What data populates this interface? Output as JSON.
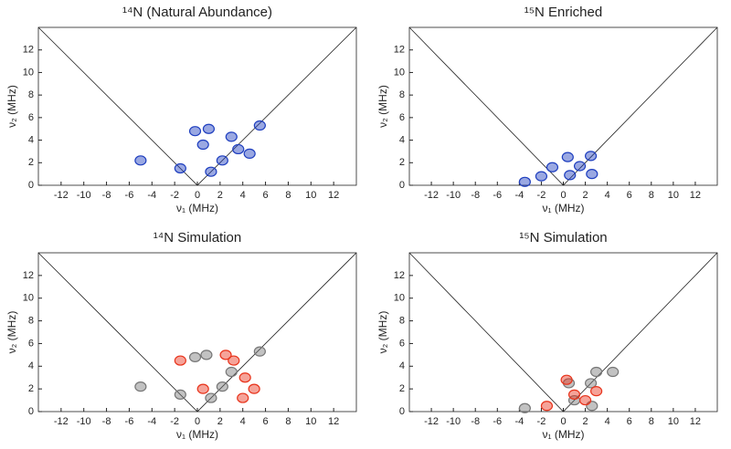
{
  "chart_data": [
    {
      "type": "contour",
      "title": "¹⁴N (Natural Abundance)",
      "xlabel": "ν₁ (MHz)",
      "ylabel": "ν₂ (MHz)",
      "xlim": [
        -14,
        14
      ],
      "ylim": [
        0,
        14
      ],
      "xticks": [
        -12,
        -10,
        -8,
        -6,
        -4,
        -2,
        0,
        2,
        4,
        6,
        8,
        10,
        12
      ],
      "yticks": [
        0,
        2,
        4,
        6,
        8,
        10,
        12
      ],
      "series": [
        {
          "color": "#1f3fbf",
          "x": [
            -5,
            -1.5,
            1.2,
            2.2,
            3,
            3.6,
            4.6,
            1,
            -0.2,
            5.5,
            0.5
          ],
          "y": [
            2.2,
            1.5,
            1.2,
            2.2,
            4.3,
            3.2,
            2.8,
            5,
            4.8,
            5.3,
            3.6
          ]
        }
      ]
    },
    {
      "type": "contour",
      "title": "¹⁵N Enriched",
      "xlabel": "ν₁ (MHz)",
      "ylabel": "ν₂ (MHz)",
      "xlim": [
        -14,
        14
      ],
      "ylim": [
        0,
        14
      ],
      "xticks": [
        -12,
        -10,
        -8,
        -6,
        -4,
        -2,
        0,
        2,
        4,
        6,
        8,
        10,
        12
      ],
      "yticks": [
        0,
        2,
        4,
        6,
        8,
        10,
        12
      ],
      "series": [
        {
          "color": "#1f3fbf",
          "x": [
            0.4,
            2.5,
            0.6,
            2.6,
            -2,
            -3.5,
            -1,
            1.5
          ],
          "y": [
            2.5,
            2.6,
            0.9,
            1.0,
            0.8,
            0.3,
            1.6,
            1.7
          ]
        }
      ]
    },
    {
      "type": "contour",
      "title": "¹⁴N Simulation",
      "xlabel": "ν₁ (MHz)",
      "ylabel": "ν₂ (MHz)",
      "xlim": [
        -14,
        14
      ],
      "ylim": [
        0,
        14
      ],
      "xticks": [
        -12,
        -10,
        -8,
        -6,
        -4,
        -2,
        0,
        2,
        4,
        6,
        8,
        10,
        12
      ],
      "yticks": [
        0,
        2,
        4,
        6,
        8,
        10,
        12
      ],
      "series": [
        {
          "color": "#777777",
          "x": [
            -5,
            -1.5,
            1.2,
            2.2,
            3,
            0.8,
            -0.2,
            5.5
          ],
          "y": [
            2.2,
            1.5,
            1.2,
            2.2,
            3.5,
            5,
            4.8,
            5.3
          ]
        },
        {
          "color": "#e8341c",
          "x": [
            3.2,
            4.2,
            5,
            2.5,
            -1.5,
            0.5,
            4
          ],
          "y": [
            4.5,
            3,
            2,
            5,
            4.5,
            2,
            1.2
          ]
        }
      ]
    },
    {
      "type": "contour",
      "title": "¹⁵N Simulation",
      "xlabel": "ν₁ (MHz)",
      "ylabel": "ν₂ (MHz)",
      "xlim": [
        -14,
        14
      ],
      "ylim": [
        0,
        14
      ],
      "xticks": [
        -12,
        -10,
        -8,
        -6,
        -4,
        -2,
        0,
        2,
        4,
        6,
        8,
        10,
        12
      ],
      "yticks": [
        0,
        2,
        4,
        6,
        8,
        10,
        12
      ],
      "series": [
        {
          "color": "#777777",
          "x": [
            0.5,
            2.5,
            1,
            2.6,
            3,
            -3.5,
            4.5
          ],
          "y": [
            2.5,
            2.5,
            1,
            0.5,
            3.5,
            0.3,
            3.5
          ]
        },
        {
          "color": "#e8341c",
          "x": [
            1,
            2,
            -1.5,
            0.3,
            3
          ],
          "y": [
            1.5,
            1,
            0.5,
            2.8,
            1.8
          ]
        }
      ]
    }
  ]
}
